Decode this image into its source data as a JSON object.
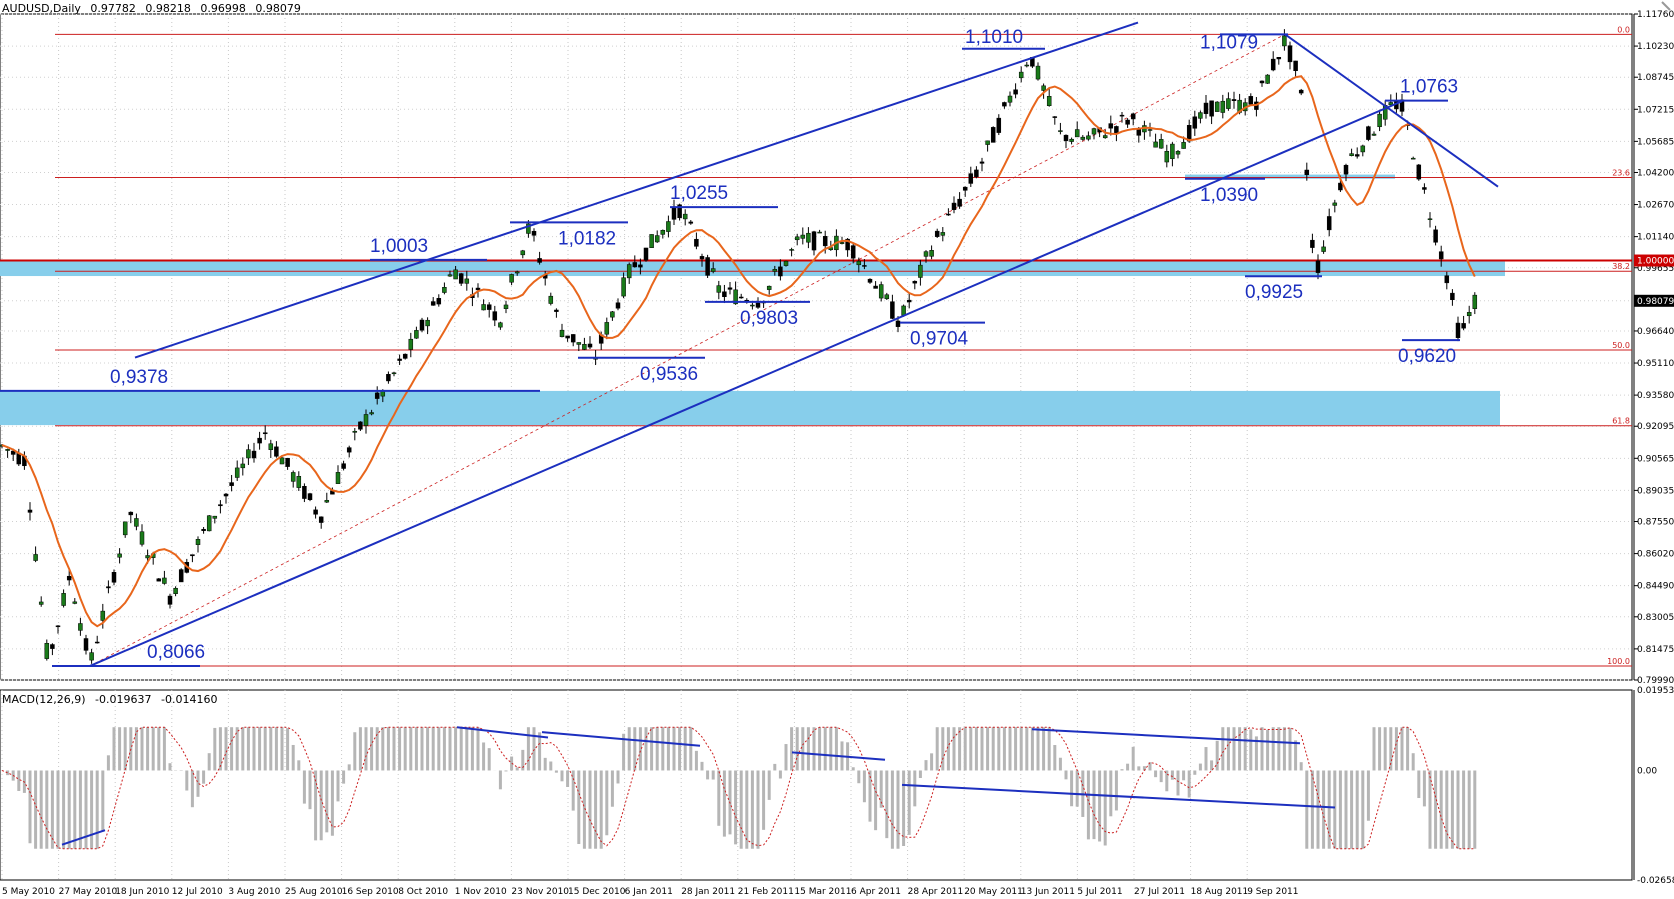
{
  "header": {
    "symbol": "AUDUSD,Daily",
    "open": "0.97782",
    "high": "0.98218",
    "low": "0.96998",
    "close": "0.98079"
  },
  "macd_header": {
    "label": "MACD(12,26,9)",
    "value1": "-0.019637",
    "value2": "-0.014160"
  },
  "colors": {
    "bull": "#1a7a1a",
    "bear": "#000000",
    "ma": "#e8661c",
    "trend": "#1c2fbf",
    "fib": "#cc1f1f",
    "zone": "#87ceeb",
    "macd_hist": "#b5b5b5",
    "macd_signal": "#cc1f1f"
  },
  "chart_data": [
    {
      "type": "candlestick",
      "title": "AUDUSD,Daily",
      "ylim": [
        0.7999,
        1.1176
      ],
      "price_axis_ticks": [
        "1.11760",
        "1.10230",
        "1.08745",
        "1.07215",
        "1.05685",
        "1.04200",
        "1.02670",
        "1.01140",
        "0.99655",
        "0.98079",
        "0.96640",
        "0.95110",
        "0.93580",
        "0.92095",
        "0.90565",
        "0.89035",
        "0.87550",
        "0.86020",
        "0.84490",
        "0.83005",
        "0.81475",
        "0.79990"
      ],
      "current_price": "0.98079",
      "x_ticks": [
        "5 May 2010",
        "27 May 2010",
        "18 Jun 2010",
        "12 Jul 2010",
        "3 Aug 2010",
        "25 Aug 2010",
        "16 Sep 2010",
        "8 Oct 2010",
        "1 Nov 2010",
        "23 Nov 2010",
        "15 Dec 2010",
        "6 Jan 2011",
        "28 Jan 2011",
        "21 Feb 2011",
        "15 Mar 2011",
        "6 Apr 2011",
        "28 Apr 2011",
        "20 May 2011",
        "13 Jun 2011",
        "5 Jul 2011",
        "27 Jul 2011",
        "18 Aug 2011",
        "9 Sep 2011"
      ],
      "key_levels": [
        {
          "label": "0,8066",
          "value": 0.8066
        },
        {
          "label": "0,9378",
          "value": 0.9378
        },
        {
          "label": "1,0003",
          "value": 1.0003
        },
        {
          "label": "1,0182",
          "value": 1.0182
        },
        {
          "label": "0,9536",
          "value": 0.9536
        },
        {
          "label": "1,0255",
          "value": 1.0255
        },
        {
          "label": "0,9803",
          "value": 0.9803
        },
        {
          "label": "0,9704",
          "value": 0.9704
        },
        {
          "label": "1,1010",
          "value": 1.101
        },
        {
          "label": "1,1079",
          "value": 1.1079
        },
        {
          "label": "1,0390",
          "value": 1.039
        },
        {
          "label": "0,9925",
          "value": 0.9925
        },
        {
          "label": "1,0763",
          "value": 1.0763
        },
        {
          "label": "0,9620",
          "value": 0.962
        }
      ],
      "fibonacci": [
        {
          "label": "0.0",
          "value": 1.1079
        },
        {
          "label": "23.6",
          "value": 1.0396
        },
        {
          "label": "38.2",
          "value": 0.9949
        },
        {
          "label": "50.0",
          "value": 0.9573
        },
        {
          "label": "61.8",
          "value": 0.9212
        },
        {
          "label": "100.0",
          "value": 0.8066
        }
      ],
      "round_level": {
        "label": "1.00000",
        "value": 1.0
      }
    },
    {
      "type": "bar",
      "title": "MACD(12,26,9) -0.019637 -0.014160",
      "ylim": [
        -0.02658,
        0.01953
      ],
      "axis_ticks": [
        "0.01953",
        "0.00",
        "-0.02658"
      ]
    }
  ]
}
